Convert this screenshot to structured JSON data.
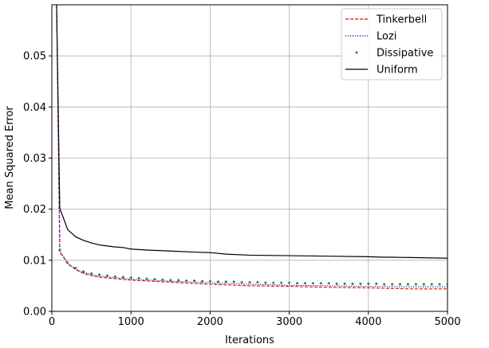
{
  "chart_data": {
    "type": "line",
    "title": "",
    "xlabel": "Iterations",
    "ylabel": "Mean Squared Error",
    "xlim": [
      0,
      5000
    ],
    "ylim": [
      0,
      0.06
    ],
    "x_ticks": [
      0,
      1000,
      2000,
      3000,
      4000,
      5000
    ],
    "x_tick_labels": [
      "0",
      "1000",
      "2000",
      "3000",
      "4000",
      "5000"
    ],
    "y_ticks": [
      0,
      0.01,
      0.02,
      0.03,
      0.04,
      0.05
    ],
    "y_tick_labels": [
      "0.00",
      "0.01",
      "0.02",
      "0.03",
      "0.04",
      "0.05"
    ],
    "grid": true,
    "legend_position": "top-right",
    "series": [
      {
        "name": "Tinkerbell",
        "color": "#ff0000",
        "style": "dashed",
        "x": [
          60,
          100,
          150,
          200,
          300,
          400,
          500,
          600,
          800,
          1000,
          1500,
          2000,
          2500,
          3000,
          3500,
          4000,
          4500,
          5000
        ],
        "y": [
          0.06,
          0.0115,
          0.0105,
          0.0093,
          0.0082,
          0.0074,
          0.007,
          0.0067,
          0.0064,
          0.0061,
          0.0057,
          0.0053,
          0.005,
          0.0049,
          0.0047,
          0.0046,
          0.0044,
          0.0044
        ]
      },
      {
        "name": "Lozi",
        "color": "#0000ff",
        "style": "dotted",
        "x": [
          60,
          100,
          150,
          200,
          300,
          400,
          500,
          600,
          800,
          1000,
          1500,
          2000,
          2500,
          3000,
          3500,
          4000,
          4500,
          5000
        ],
        "y": [
          0.06,
          0.0118,
          0.0107,
          0.0094,
          0.0083,
          0.0076,
          0.0072,
          0.0069,
          0.0066,
          0.0063,
          0.0059,
          0.0056,
          0.0053,
          0.0051,
          0.005,
          0.0049,
          0.0048,
          0.0048
        ]
      },
      {
        "name": "Dissipative",
        "color": "#008000",
        "style": "markers",
        "x": [
          100,
          200,
          300,
          400,
          500,
          600,
          700,
          800,
          900,
          1000,
          1100,
          1200,
          1300,
          1400,
          1500,
          1600,
          1700,
          1800,
          1900,
          2000,
          2100,
          2200,
          2300,
          2400,
          2500,
          2600,
          2700,
          2800,
          2900,
          3000,
          3100,
          3200,
          3300,
          3400,
          3500,
          3600,
          3700,
          3800,
          3900,
          4000,
          4100,
          4200,
          4300,
          4400,
          4500,
          4600,
          4700,
          4800,
          4900,
          5000
        ],
        "y": [
          0.012,
          0.0095,
          0.0085,
          0.0078,
          0.0074,
          0.0072,
          0.007,
          0.0068,
          0.0067,
          0.0066,
          0.0065,
          0.0064,
          0.0063,
          0.0062,
          0.0061,
          0.0061,
          0.006,
          0.006,
          0.0059,
          0.0059,
          0.0058,
          0.0058,
          0.0058,
          0.0057,
          0.0057,
          0.0057,
          0.0056,
          0.0056,
          0.0056,
          0.0056,
          0.0055,
          0.0055,
          0.0055,
          0.0055,
          0.0055,
          0.0054,
          0.0054,
          0.0054,
          0.0054,
          0.0054,
          0.0054,
          0.0053,
          0.0053,
          0.0053,
          0.0053,
          0.0053,
          0.0053,
          0.0053,
          0.0053,
          0.0053
        ]
      },
      {
        "name": "Uniform",
        "color": "#000000",
        "style": "solid",
        "x": [
          60,
          100,
          200,
          300,
          400,
          500,
          600,
          700,
          800,
          900,
          1000,
          1200,
          1500,
          1800,
          2000,
          2200,
          2500,
          3000,
          3500,
          4000,
          4200,
          4300,
          5000
        ],
        "y": [
          0.06,
          0.0202,
          0.016,
          0.0146,
          0.0139,
          0.0134,
          0.013,
          0.0128,
          0.0126,
          0.0125,
          0.0122,
          0.012,
          0.0118,
          0.0116,
          0.0115,
          0.0112,
          0.011,
          0.0109,
          0.0108,
          0.0107,
          0.0106,
          0.0106,
          0.0104
        ]
      }
    ]
  }
}
